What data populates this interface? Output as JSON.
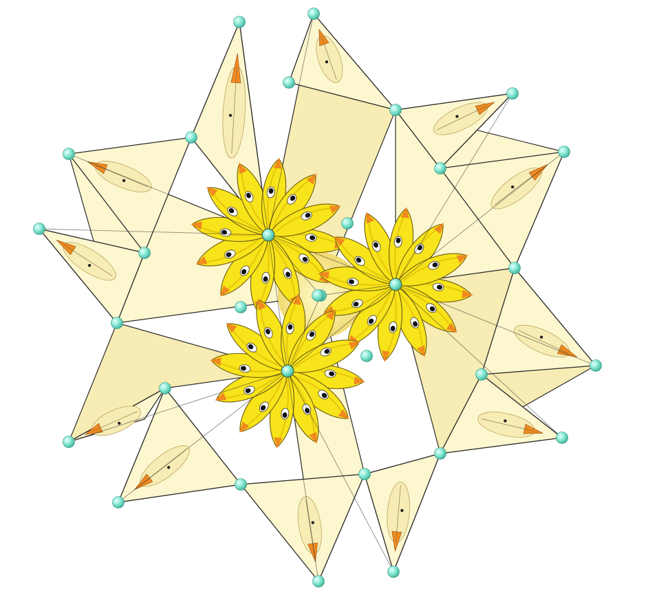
{
  "scene": {
    "subject": "stellated-polyhedron",
    "background": "#ffffff",
    "palette": {
      "paper": "#fdf7cf",
      "cream": "#f7ecb4",
      "yellow": "#f8e41a",
      "yellow_dark": "#e7c90c",
      "orange": "#f08a1f",
      "edge": "#2b2b2b",
      "vertex": "#7ee8d3"
    },
    "motifs": [
      "duck-head-icon",
      "petal-icon",
      "vertex-sphere-icon"
    ]
  }
}
